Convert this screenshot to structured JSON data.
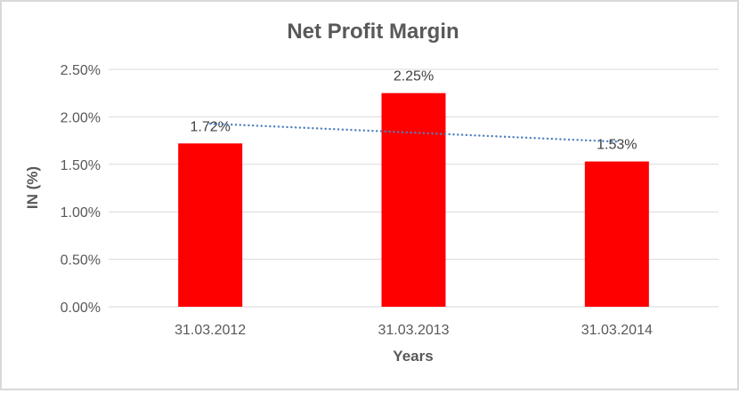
{
  "chart_data": {
    "type": "bar",
    "title": "Net Profit Margin",
    "xlabel": "Years",
    "ylabel": "IN (%)",
    "categories": [
      "31.03.2012",
      "31.03.2013",
      "31.03.2014"
    ],
    "values": [
      1.72,
      2.25,
      1.53
    ],
    "data_labels": [
      "1.72%",
      "2.25%",
      "1.53%"
    ],
    "y_ticks": [
      {
        "value": 0,
        "label": "0.00%"
      },
      {
        "value": 0.5,
        "label": "0.50%"
      },
      {
        "value": 1.0,
        "label": "1.00%"
      },
      {
        "value": 1.5,
        "label": "1.50%"
      },
      {
        "value": 2.0,
        "label": "2.00%"
      },
      {
        "value": 2.5,
        "label": "2.50%"
      }
    ],
    "ylim": [
      0,
      2.5
    ],
    "grid": true,
    "legend": "none",
    "trendline": {
      "type": "linear",
      "style": "dotted"
    },
    "colors": {
      "bar": "#FF0000",
      "trendline": "#4F81BD",
      "grid": "#D9D9D9",
      "text": "#595959",
      "data_label": "#404040",
      "frame_border": "#D9D9D9",
      "background": "#FFFFFF"
    }
  }
}
